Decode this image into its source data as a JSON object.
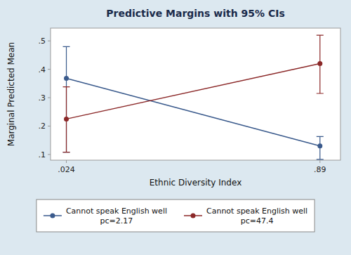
{
  "chart_data": {
    "type": "line",
    "title": "Predictive Margins with 95% CIs",
    "x_label": "Ethnic Diversity Index",
    "y_label": "Marginal Predicted Mean",
    "x": [
      0.024,
      0.89
    ],
    "xlim": [
      -0.03,
      0.96
    ],
    "xticks": [
      {
        "value": 0.024,
        "label": ".024"
      },
      {
        "value": 0.89,
        "label": ".89"
      }
    ],
    "ylim": [
      0.08,
      0.545
    ],
    "yticks": [
      {
        "value": 0.1,
        "label": ".1"
      },
      {
        "value": 0.2,
        "label": ".2"
      },
      {
        "value": 0.3,
        "label": ".3"
      },
      {
        "value": 0.4,
        "label": ".4"
      },
      {
        "value": 0.5,
        "label": ".5"
      }
    ],
    "grid": false,
    "legend": "bottom",
    "marker": "circle",
    "series": [
      {
        "name": "Cannot speak English well\npc=2.17",
        "color": "#3a5a8c",
        "values": [
          0.368,
          0.13
        ],
        "ci_low": [
          0.108,
          0.083
        ],
        "ci_high": [
          0.48,
          0.163
        ]
      },
      {
        "name": "Cannot speak English well\npc=47.4",
        "color": "#8b2828",
        "values": [
          0.225,
          0.42
        ],
        "ci_low": [
          0.108,
          0.315
        ],
        "ci_high": [
          0.338,
          0.52
        ]
      }
    ]
  }
}
